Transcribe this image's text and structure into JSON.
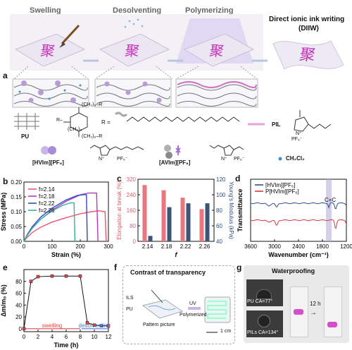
{
  "panel_a": {
    "label": "a",
    "stages": [
      "Swelling",
      "Desolventing",
      "Polymerizing",
      "Direct ionic ink writing"
    ],
    "diiw_abbr": "(DIIW)",
    "uv": "UV",
    "glyph": "聚",
    "chem": {
      "pu": "PU",
      "r_def": "R =",
      "chain_sub_top": "(CH₂)₆–R",
      "chain_sub_left": "(CH₂)₆",
      "chain_sub_bottom": "(CH₂)₆–R",
      "r_prefix": "R–",
      "hvim": "[HVIm][PF₆]",
      "avim": "[AVIm][PF₆]",
      "pil": "PIL",
      "ch2cl2": "CH₂Cl₂",
      "pf6": "PF₆⁻",
      "n_plus": "N⁺",
      "n": "N"
    },
    "colors": {
      "accent_purple": "#c22fb8",
      "lilac": "#b79ad8",
      "blue_dot": "#3d8fd1"
    }
  },
  "chart_data": [
    {
      "panel": "b",
      "type": "line",
      "xlabel": "Strain (%)",
      "ylabel": "Stress (MPa)",
      "xlim": [
        0,
        300
      ],
      "ylim": [
        0,
        0.2
      ],
      "xticks": [
        0,
        100,
        200,
        300
      ],
      "yticks": [
        0.0,
        0.05,
        0.1,
        0.15,
        0.2
      ],
      "legend_position": "top-left",
      "series": [
        {
          "name": "f=2.14",
          "color": "#f0556e",
          "points": [
            [
              0,
              0
            ],
            [
              10,
              0.012
            ],
            [
              30,
              0.03
            ],
            [
              60,
              0.048
            ],
            [
              100,
              0.065
            ],
            [
              150,
              0.08
            ],
            [
              200,
              0.093
            ],
            [
              240,
              0.1
            ],
            [
              265,
              0.103
            ],
            [
              288,
              0.1
            ],
            [
              292,
              0
            ]
          ]
        },
        {
          "name": "f=2.18",
          "color": "#b23bbd",
          "points": [
            [
              0,
              0
            ],
            [
              10,
              0.018
            ],
            [
              30,
              0.045
            ],
            [
              60,
              0.075
            ],
            [
              100,
              0.105
            ],
            [
              150,
              0.135
            ],
            [
              200,
              0.157
            ],
            [
              230,
              0.163
            ],
            [
              258,
              0.163
            ],
            [
              263,
              0
            ]
          ]
        },
        {
          "name": "f=2.22",
          "color": "#2f49c6",
          "points": [
            [
              0,
              0
            ],
            [
              10,
              0.02
            ],
            [
              30,
              0.05
            ],
            [
              60,
              0.082
            ],
            [
              100,
              0.112
            ],
            [
              150,
              0.14
            ],
            [
              190,
              0.155
            ],
            [
              215,
              0.158
            ],
            [
              222,
              0.157
            ],
            [
              225,
              0
            ]
          ]
        },
        {
          "name": "f=2.26",
          "color": "#2fb6a0",
          "points": [
            [
              0,
              0
            ],
            [
              10,
              0.018
            ],
            [
              30,
              0.045
            ],
            [
              60,
              0.075
            ],
            [
              100,
              0.103
            ],
            [
              140,
              0.122
            ],
            [
              165,
              0.13
            ],
            [
              178,
              0.13
            ],
            [
              181,
              0
            ]
          ]
        }
      ]
    },
    {
      "panel": "c",
      "type": "bar",
      "xlabel": "f",
      "ylabel": "Elongation at break (%)",
      "ylabel_right": "Young's Modulus (kPa)",
      "categories": [
        "2.14",
        "2.18",
        "2.22",
        "2.26"
      ],
      "ylim": [
        0,
        320
      ],
      "ylim_right": [
        40,
        120
      ],
      "yticks": [
        0,
        80,
        160,
        240,
        320
      ],
      "yticks_right": [
        40,
        60,
        80,
        100,
        120
      ],
      "series": [
        {
          "name": "Elongation at break",
          "axis": "left",
          "color": "#e8777f",
          "values": [
            290,
            263,
            225,
            166
          ]
        },
        {
          "name": "Young's Modulus",
          "axis": "right",
          "color": "#3c5577",
          "values": [
            47,
            84,
            89,
            89
          ]
        }
      ]
    },
    {
      "panel": "d",
      "type": "line",
      "xlabel": "Wavenumber (cm⁻¹)",
      "ylabel": "Transmittance",
      "xlim": [
        3600,
        1200
      ],
      "xticks": [
        3600,
        3000,
        2400,
        1800,
        1200
      ],
      "annotation": "C=C",
      "annotation_x": 1640,
      "legend_position": "top",
      "series": [
        {
          "name": "[HVIm][PF₆]",
          "color": "#2d4e8f"
        },
        {
          "name": "P[HVIm][PF₆]",
          "color": "#e0373b"
        }
      ]
    },
    {
      "panel": "e",
      "type": "line",
      "xlabel": "Time (h)",
      "ylabel": "Δm/m₀ (%)",
      "xlim": [
        0,
        12
      ],
      "ylim": [
        -5,
        100
      ],
      "xticks": [
        0,
        2,
        4,
        6,
        8,
        10,
        12
      ],
      "yticks": [
        0,
        20,
        40,
        60,
        80
      ],
      "phases": [
        "swelling",
        "desolventing"
      ],
      "series": [
        {
          "name": "",
          "color": "#e34a4a",
          "x": [
            0,
            1,
            2,
            4,
            6,
            8,
            9,
            10,
            11,
            12
          ],
          "y": [
            0,
            80,
            88,
            89,
            89,
            89,
            10,
            6,
            5,
            5
          ]
        }
      ]
    }
  ],
  "panel_b": {
    "label": "b"
  },
  "panel_c": {
    "label": "c"
  },
  "panel_d": {
    "label": "d"
  },
  "panel_e": {
    "label": "e",
    "swelling": "swelling",
    "desolventing": "desolventing"
  },
  "panel_f": {
    "label": "f",
    "title": "Contrast of transparency",
    "ils": "ILS",
    "pu": "PU",
    "uv": "UV",
    "polymerized": "Polymerized",
    "pattern": "Pattern picture",
    "scale": "1 cm"
  },
  "panel_g": {
    "label": "g",
    "title": "Waterproofing",
    "pu_ca": "PU CA=77°",
    "pils_ca": "PILs CA=134°",
    "time": "12 h"
  }
}
